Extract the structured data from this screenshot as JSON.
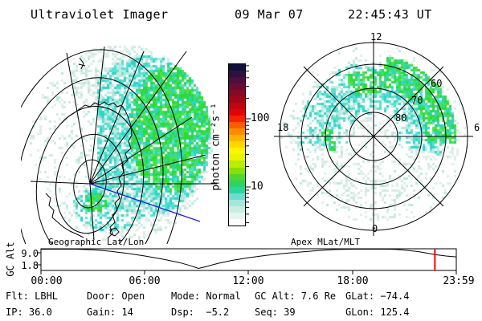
{
  "title": {
    "app": "Ultraviolet Imager",
    "date": "09 Mar 07",
    "time": "22:45:43 UT"
  },
  "left_panel": {
    "caption": "Geographic Lat/Lon",
    "grid": "geographic lat/lon ellipses with Antarctic coastline",
    "track_line_color": "#2020dd"
  },
  "right_panel": {
    "caption": "Apex MLat/MLT",
    "mlt_labels": [
      "12",
      "18",
      "6",
      "0"
    ],
    "mlat_labels": [
      "60",
      "70",
      "80"
    ]
  },
  "colorbar": {
    "label": "photon cm⁻²s⁻¹",
    "tick_labels": [
      "100",
      "10"
    ],
    "scale": "log",
    "colors": [
      "#10103a",
      "#301040",
      "#4c0e3a",
      "#680c30",
      "#840a26",
      "#a0061a",
      "#c00410",
      "#e00408",
      "#fc2000",
      "#ff5c00",
      "#ff8c00",
      "#ffb400",
      "#ffd800",
      "#fff400",
      "#e8f400",
      "#bcec00",
      "#8ce000",
      "#50d630",
      "#2cd464",
      "#2cd4a0",
      "#6cdcd0",
      "#a4e8dc",
      "#c8eee4",
      "#e6f4ef",
      "#ffffff"
    ]
  },
  "aurora_palette": {
    "bright_green": "#2ed93e",
    "green": "#49e249",
    "cyan": "#2bd5c7",
    "cyan_light": "#55e0d2",
    "pale_cyan": "#b6e8de",
    "pale_gray": "#dfeee8",
    "pale_gray2": "#cfe9e1"
  },
  "gc_alt_chart": {
    "ylabel": "GC Alt",
    "ytick_labels": [
      "9.0",
      "1.8"
    ],
    "xtick_labels": [
      "00:00",
      "06:00",
      "12:00",
      "18:00",
      "23:59"
    ],
    "marker_color": "#ff0000"
  },
  "status": {
    "row1": [
      "Flt: LBHL",
      "Door: Open",
      "Mode: Normal",
      "GC Alt: 7.6 Re",
      "GLat: −74.4"
    ],
    "row2": [
      "IP: 36.0",
      "Gain: 14",
      "Dsp:  −5.2",
      "Seq: 39",
      "GLon: 125.4"
    ]
  },
  "chart_data": [
    {
      "type": "heatmap",
      "panel": "left",
      "title": "Geographic Lat/Lon",
      "units": "photon cm-2 s-1",
      "description": "UV auroral image over south polar geographic grid; bright crescent (10-100 photon) on eastern side, small bright patch just south of pole"
    },
    {
      "type": "heatmap",
      "panel": "right",
      "title": "Apex MLat/MLT",
      "rings_mlat": [
        80,
        70,
        60,
        50
      ],
      "mlt_ticks": [
        12,
        18,
        6,
        0
      ],
      "units": "photon cm-2 s-1",
      "description": "auroral oval between ~60 and 80 MLat, brightest (green, ~30-100 photon) in 12-06 MLT sector, faint in nightside sector"
    },
    {
      "type": "colorbar",
      "label": "photon cm⁻²s⁻¹",
      "scale": "log",
      "tick_values": [
        100,
        10
      ]
    },
    {
      "type": "line",
      "title": "GC Alt",
      "ylabel": "GC Alt",
      "yticks": [
        9.0,
        1.8
      ],
      "xlim_hours": [
        0,
        24
      ],
      "xtick_labels": [
        "00:00",
        "06:00",
        "12:00",
        "18:00",
        "23:59"
      ],
      "x_hours": [
        0,
        1,
        2,
        3,
        3.5,
        4,
        5,
        6,
        7,
        8,
        8.6,
        9.1,
        9.6,
        10.2,
        11,
        12,
        13,
        14,
        15,
        16,
        17,
        18,
        19,
        20,
        20.5,
        21,
        21.8,
        22.4,
        22.76,
        23.4,
        24
      ],
      "y_re": [
        10.8,
        10.8,
        10.6,
        10.2,
        9.8,
        9.4,
        8.3,
        6.9,
        5.3,
        3.4,
        1.9,
        0.3,
        1.4,
        2.9,
        4.5,
        6.0,
        7.2,
        8.2,
        9.0,
        9.7,
        10.3,
        10.7,
        10.8,
        10.7,
        10.4,
        10.0,
        9.2,
        8.3,
        7.6,
        6.9,
        6.4
      ],
      "marker_time_hours": 22.763,
      "marker_label": "22:45:43 UT",
      "marker_color": "#ff0000"
    }
  ]
}
